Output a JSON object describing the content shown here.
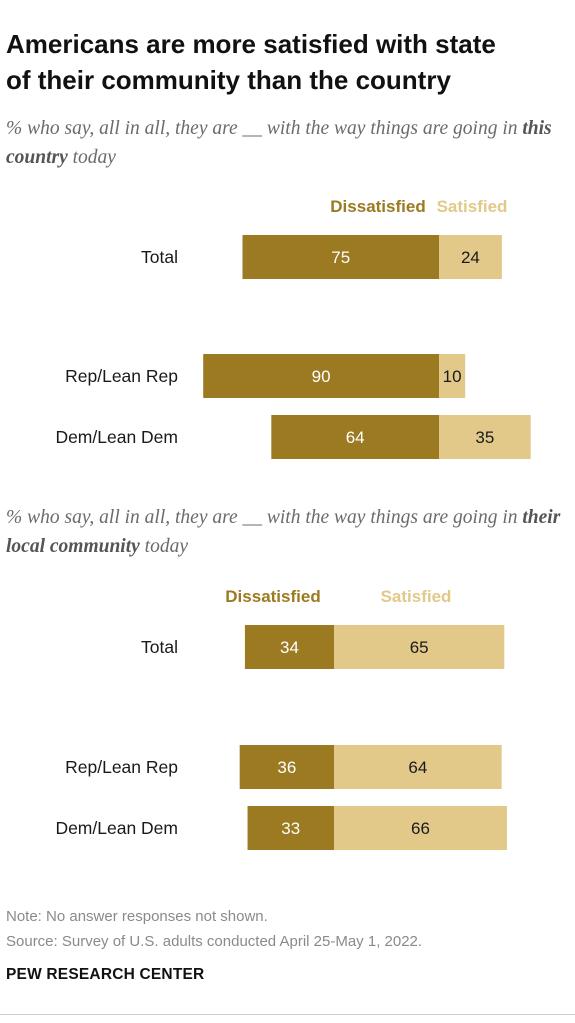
{
  "title_line1": "Americans are more satisfied with state",
  "title_line2": "of their community than the country",
  "colors": {
    "dissatisfied": "#9c7a22",
    "satisfied": "#e2c98a",
    "dark_text": "#1a1a1a",
    "bar_text": "#ffffff",
    "dissatisfied_label": "#9c7a22",
    "satisfied_label": "#e2c98a"
  },
  "chart_data": [
    {
      "type": "bar",
      "orientation": "horizontal-diverging",
      "subtitle": {
        "pre": "% who say, all in all, they are __ with the way things are going in ",
        "emph": "this country",
        "post": " today"
      },
      "series_labels": {
        "dissatisfied": "Dissatisfied",
        "satisfied": "Satisfied"
      },
      "categories": [
        "Total",
        "Rep/Lean Rep",
        "Dem/Lean Dem"
      ],
      "series": [
        {
          "name": "Dissatisfied",
          "values": [
            75,
            90,
            64
          ]
        },
        {
          "name": "Satisfied",
          "values": [
            24,
            10,
            35
          ]
        }
      ]
    },
    {
      "type": "bar",
      "orientation": "horizontal-diverging",
      "subtitle": {
        "pre": "% who say, all in all, they are __ with the way things are going in ",
        "emph": "their local community",
        "post": " today"
      },
      "series_labels": {
        "dissatisfied": "Dissatisfied",
        "satisfied": "Satisfied"
      },
      "categories": [
        "Total",
        "Rep/Lean Rep",
        "Dem/Lean Dem"
      ],
      "series": [
        {
          "name": "Dissatisfied",
          "values": [
            34,
            36,
            33
          ]
        },
        {
          "name": "Satisfied",
          "values": [
            65,
            64,
            66
          ]
        }
      ]
    }
  ],
  "note": "Note: No answer responses not shown.",
  "source": "Source: Survey of U.S. adults conducted April 25-May 1, 2022.",
  "brand": "PEW RESEARCH CENTER"
}
